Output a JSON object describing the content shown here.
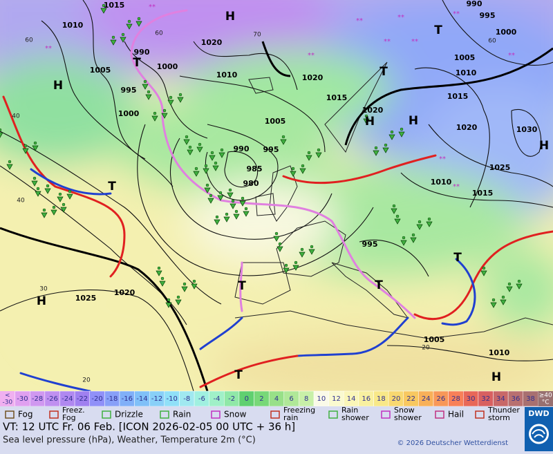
{
  "map": {
    "pressure_labels": [
      "1015",
      "1010",
      "990",
      "1000",
      "1005",
      "995",
      "1000",
      "1020",
      "1010",
      "1020",
      "1015",
      "1005",
      "990",
      "995",
      "985",
      "980",
      "995",
      "1020",
      "990",
      "995",
      "1000",
      "1005",
      "1010",
      "1015",
      "1020",
      "1030",
      "1025",
      "1010",
      "1015",
      "1025",
      "1020",
      "1005",
      "1010"
    ],
    "isotherm_labels": [
      "60",
      "40",
      "40",
      "30",
      "20",
      "20",
      "60",
      "70",
      "60"
    ],
    "highs": [
      "H",
      "H",
      "H",
      "H",
      "H",
      "H",
      "H"
    ],
    "lows": [
      "T",
      "T",
      "T",
      "T",
      "T",
      "T",
      "T",
      "T"
    ]
  },
  "scale": {
    "low": [
      "<",
      "-30"
    ],
    "low_color": "#f0b0f0",
    "cells": [
      "-30",
      "-28",
      "-26",
      "-24",
      "-22",
      "-20",
      "-18",
      "-16",
      "-14",
      "-12",
      "-10",
      "-8",
      "-6",
      "-4",
      "-2",
      "0",
      "2",
      "4",
      "6",
      "8",
      "10",
      "12",
      "14",
      "16",
      "18",
      "20",
      "22",
      "24",
      "26",
      "28",
      "30",
      "32",
      "34",
      "36",
      "38"
    ],
    "colors": [
      "#e0a0f0",
      "#d098f0",
      "#c090f0",
      "#b088f0",
      "#a080f0",
      "#9090f8",
      "#88a0f8",
      "#80b0f8",
      "#80c0f8",
      "#88d0f8",
      "#90e0f8",
      "#a0e8f0",
      "#a0f0e0",
      "#a0f0c8",
      "#90e8a8",
      "#60d070",
      "#78d878",
      "#98e088",
      "#b0e898",
      "#c8f0a8",
      "#fafae8",
      "#fafad0",
      "#faf6b8",
      "#f8f0a0",
      "#f8e888",
      "#f8d870",
      "#f8c860",
      "#f8b058",
      "#f89858",
      "#f88058",
      "#e86858",
      "#d86060",
      "#c86868",
      "#b87070",
      "#a87070"
    ],
    "high": [
      "≥40",
      "°C"
    ],
    "high_color": "#987070"
  },
  "legend": {
    "items": [
      {
        "lines": [
          "Fog"
        ]
      },
      {
        "lines": [
          "Freez.",
          "Fog"
        ]
      },
      {
        "lines": [
          "Drizzle"
        ]
      },
      {
        "lines": [
          "Rain"
        ]
      },
      {
        "lines": [
          "Snow"
        ]
      },
      {
        "lines": [
          "Freezing",
          "rain"
        ]
      },
      {
        "lines": [
          "Rain",
          "shower"
        ]
      },
      {
        "lines": [
          "Snow",
          "shower"
        ]
      },
      {
        "lines": [
          "Hail"
        ]
      },
      {
        "lines": [
          "Thunder",
          "storm"
        ]
      }
    ]
  },
  "footer": {
    "valid_time": "VT: 12 UTC Fr.  06 Feb. [ICON 2026-02-05  00 UTC + 36 h]",
    "description": "Sea level pressure (hPa), Weather, Temperature 2m (°C)",
    "copyright": "© 2026 Deutscher Wetterdienst",
    "logo": "DWD"
  }
}
